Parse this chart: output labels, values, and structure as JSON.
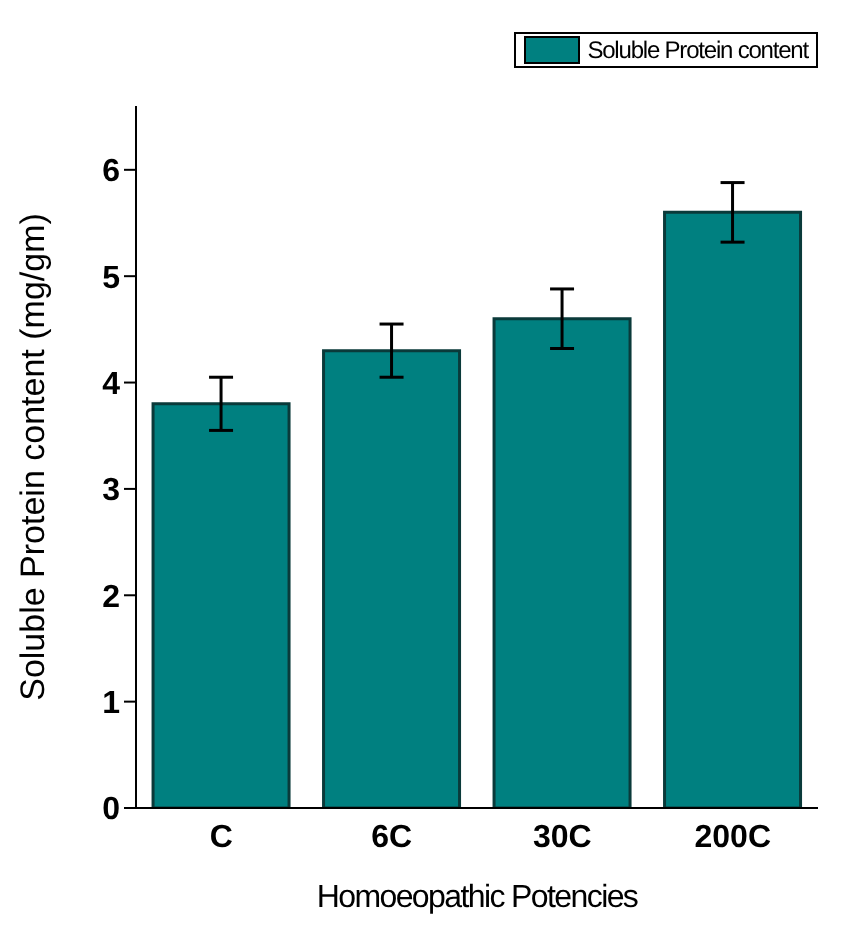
{
  "chart_data": {
    "type": "bar",
    "xlabel": "Homoeopathic Potencies",
    "ylabel": "Soluble Protein content (mg/gm)",
    "categories": [
      "C",
      "6C",
      "30C",
      "200C"
    ],
    "series": [
      {
        "name": "Soluble Protein content",
        "color": "#008080",
        "values": [
          3.8,
          4.3,
          4.6,
          5.6
        ],
        "errors": [
          0.25,
          0.25,
          0.28,
          0.28
        ]
      }
    ],
    "ylim": [
      0,
      6.6
    ],
    "yticks": [
      0,
      1,
      2,
      3,
      4,
      5,
      6
    ],
    "grid": false,
    "legend": "top right"
  }
}
